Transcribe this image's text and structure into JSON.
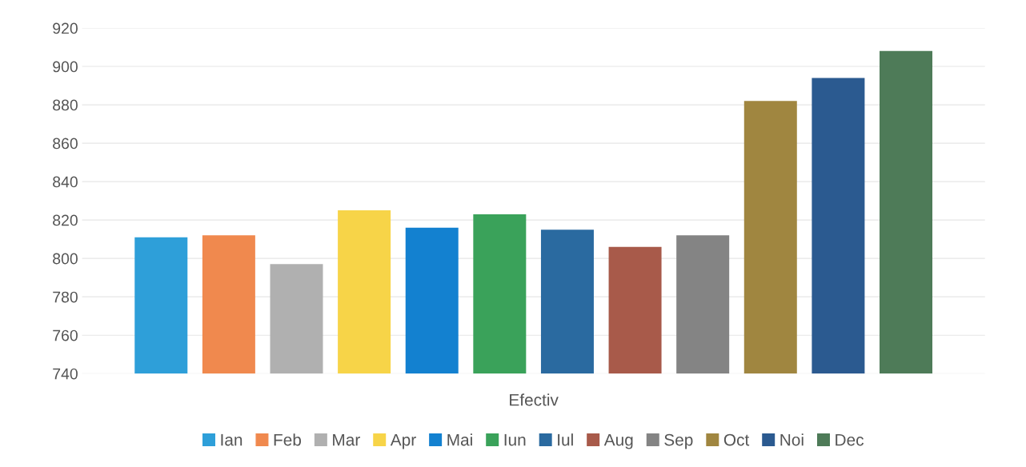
{
  "chart_data": {
    "type": "bar",
    "categories": [
      "Efectiv"
    ],
    "series": [
      {
        "name": "Ian",
        "color": "#2e9fd9",
        "values": [
          811
        ]
      },
      {
        "name": "Feb",
        "color": "#f0894e",
        "values": [
          812
        ]
      },
      {
        "name": "Mar",
        "color": "#b0b0b0",
        "values": [
          797
        ]
      },
      {
        "name": "Apr",
        "color": "#f7d448",
        "values": [
          825
        ]
      },
      {
        "name": "Mai",
        "color": "#1381d0",
        "values": [
          816
        ]
      },
      {
        "name": "Iun",
        "color": "#3aa25a",
        "values": [
          823
        ]
      },
      {
        "name": "Iul",
        "color": "#2a6aa0",
        "values": [
          815
        ]
      },
      {
        "name": "Aug",
        "color": "#a85a4a",
        "values": [
          806
        ]
      },
      {
        "name": "Sep",
        "color": "#848484",
        "values": [
          812
        ]
      },
      {
        "name": "Oct",
        "color": "#a08640",
        "values": [
          882
        ]
      },
      {
        "name": "Noi",
        "color": "#2b5a90",
        "values": [
          894
        ]
      },
      {
        "name": "Dec",
        "color": "#4e7b58",
        "values": [
          908
        ]
      }
    ],
    "ylim": [
      740,
      920
    ],
    "yticks": [
      740,
      760,
      780,
      800,
      820,
      840,
      860,
      880,
      900,
      920
    ],
    "grid": "y",
    "legend": "bottom"
  }
}
